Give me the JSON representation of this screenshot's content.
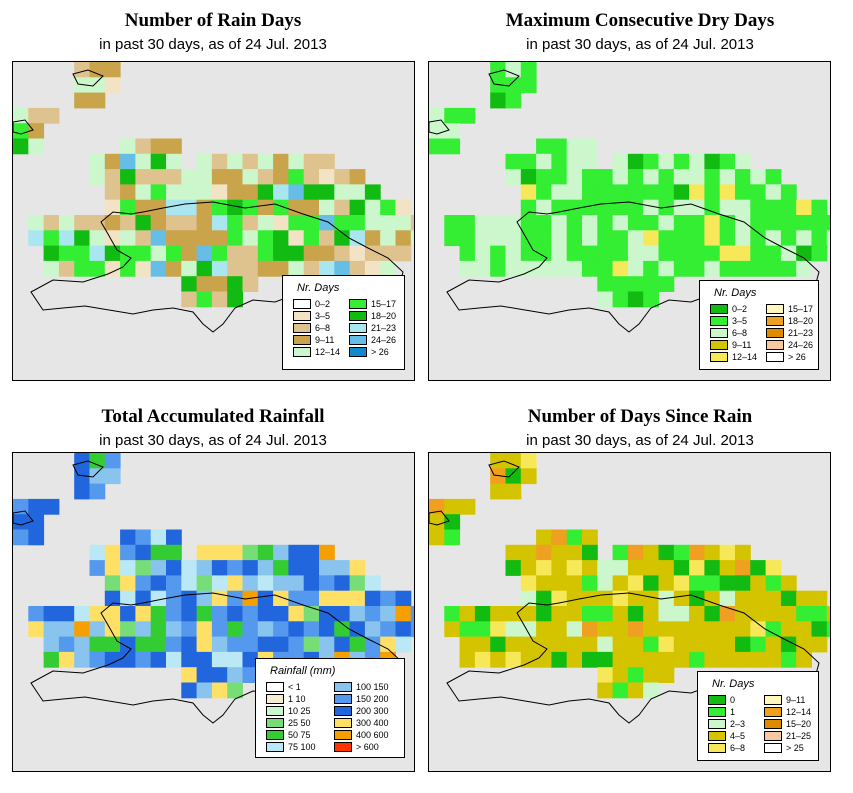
{
  "panels": [
    {
      "id": "rain-days",
      "title": "Number of Rain Days",
      "subtitle": "in past 30 days, as of  24 Jul. 2013",
      "legend": {
        "title": "Nr. Days",
        "items": [
          {
            "label": "0–2",
            "color": "#ffffff"
          },
          {
            "label": "3–5",
            "color": "#f2e3c5"
          },
          {
            "label": "6–8",
            "color": "#dfc38e"
          },
          {
            "label": "9–11",
            "color": "#c9a44a"
          },
          {
            "label": "12–14",
            "color": "#ccf7cc"
          },
          {
            "label": "15–17",
            "color": "#33ee33"
          },
          {
            "label": "18–20",
            "color": "#11bb11"
          },
          {
            "label": "21–23",
            "color": "#aae6f0"
          },
          {
            "label": "24–26",
            "color": "#66bde6"
          },
          {
            "label": "> 26",
            "color": "#1188cc"
          }
        ]
      }
    },
    {
      "id": "dry-days",
      "title": "Maximum Consecutive Dry Days",
      "subtitle": "in past 30 days, as of  24 Jul. 2013",
      "legend": {
        "title": "Nr. Days",
        "items": [
          {
            "label": "0–2",
            "color": "#11bb11"
          },
          {
            "label": "3–5",
            "color": "#33ee33"
          },
          {
            "label": "6–8",
            "color": "#ccf7cc"
          },
          {
            "label": "9–11",
            "color": "#d4c400"
          },
          {
            "label": "12–14",
            "color": "#f7e85a"
          },
          {
            "label": "15–17",
            "color": "#fff7bb"
          },
          {
            "label": "18–20",
            "color": "#f0a020"
          },
          {
            "label": "21–23",
            "color": "#e08a00"
          },
          {
            "label": "24–26",
            "color": "#f5c8a0"
          },
          {
            "label": "> 26",
            "color": "#ffffff"
          }
        ]
      }
    },
    {
      "id": "rainfall",
      "title": "Total Accumulated Rainfall",
      "subtitle": "in past 30 days, as of  24 Jul. 2013",
      "legend": {
        "title": "Rainfall (mm)",
        "items": [
          {
            "label": "< 1",
            "color": "#ffffff"
          },
          {
            "label": "1   10",
            "color": "#f5ecd2"
          },
          {
            "label": "10   25",
            "color": "#ccf7cc"
          },
          {
            "label": "25   50",
            "color": "#77dd77"
          },
          {
            "label": "50   75",
            "color": "#33cc33"
          },
          {
            "label": "75  100",
            "color": "#bbe8f5"
          },
          {
            "label": "100  150",
            "color": "#88c4ee"
          },
          {
            "label": "150  200",
            "color": "#5599ee"
          },
          {
            "label": "200  300",
            "color": "#2266dd"
          },
          {
            "label": "300  400",
            "color": "#ffe066"
          },
          {
            "label": "400  600",
            "color": "#f5a000"
          },
          {
            "label": "> 600",
            "color": "#ff3300"
          }
        ]
      }
    },
    {
      "id": "days-since-rain",
      "title": "Number of Days Since Rain",
      "subtitle": "in past 30 days, as of  24 Jul. 2013",
      "legend": {
        "title": "Nr. Days",
        "items": [
          {
            "label": "0",
            "color": "#11bb11"
          },
          {
            "label": "1",
            "color": "#33ee33"
          },
          {
            "label": "2–3",
            "color": "#ccf7cc"
          },
          {
            "label": "4–5",
            "color": "#d4c400"
          },
          {
            "label": "6–8",
            "color": "#f7e85a"
          },
          {
            "label": "9–11",
            "color": "#fff7bb"
          },
          {
            "label": "12–14",
            "color": "#f0a020"
          },
          {
            "label": "15–20",
            "color": "#e08a00"
          },
          {
            "label": "21–25",
            "color": "#f5c8a0"
          },
          {
            "label": "> 25",
            "color": "#ffffff"
          }
        ]
      }
    }
  ]
}
